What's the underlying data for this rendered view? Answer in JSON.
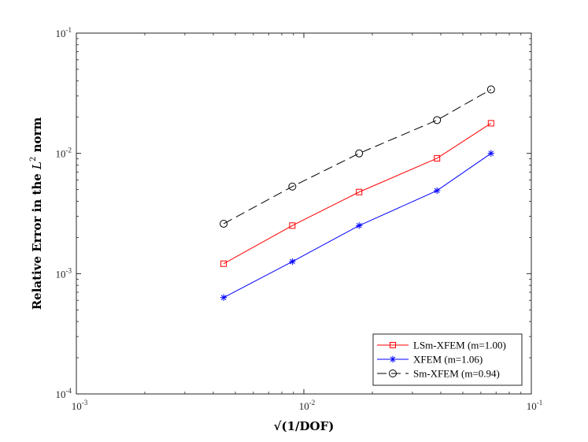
{
  "chart_data": {
    "type": "line",
    "x_scale": "log",
    "y_scale": "log",
    "xlim": [
      0.001,
      0.1
    ],
    "ylim": [
      0.0001,
      0.1
    ],
    "x_ticks": [
      {
        "value": 0.001,
        "base": "10",
        "exp": "-3"
      },
      {
        "value": 0.01,
        "base": "10",
        "exp": "-2"
      },
      {
        "value": 0.1,
        "base": "10",
        "exp": "-1"
      }
    ],
    "y_ticks": [
      {
        "value": 0.0001,
        "base": "10",
        "exp": "-4"
      },
      {
        "value": 0.001,
        "base": "10",
        "exp": "-3"
      },
      {
        "value": 0.01,
        "base": "10",
        "exp": "-2"
      },
      {
        "value": 0.1,
        "base": "10",
        "exp": "-1"
      }
    ],
    "xlabel": "√(1/DOF)",
    "ylabel_prefix": "Relative Error in the ",
    "ylabel_var": "L",
    "ylabel_exp": "2",
    "ylabel_suffix": " norm",
    "grid": false,
    "legend_position": "bottom-right",
    "series": [
      {
        "name": "LSm-XFEM (m=1.00)",
        "color": "#ff0000",
        "marker": "square",
        "dash": "solid",
        "x": [
          0.00444,
          0.0089,
          0.0175,
          0.0385,
          0.0665
        ],
        "y": [
          0.00121,
          0.00251,
          0.00477,
          0.0091,
          0.0178
        ]
      },
      {
        "name": "XFEM (m=1.06)",
        "color": "#0000ff",
        "marker": "asterisk",
        "dash": "solid",
        "x": [
          0.00444,
          0.0089,
          0.0175,
          0.0385,
          0.0665
        ],
        "y": [
          0.000633,
          0.00126,
          0.00251,
          0.0049,
          0.01
        ]
      },
      {
        "name": "Sm-XFEM (m=0.94)",
        "color": "#000000",
        "marker": "circle",
        "dash": "dashed",
        "x": [
          0.00444,
          0.0089,
          0.0175,
          0.0385,
          0.0665
        ],
        "y": [
          0.0026,
          0.0053,
          0.01,
          0.0189,
          0.034
        ]
      }
    ]
  }
}
